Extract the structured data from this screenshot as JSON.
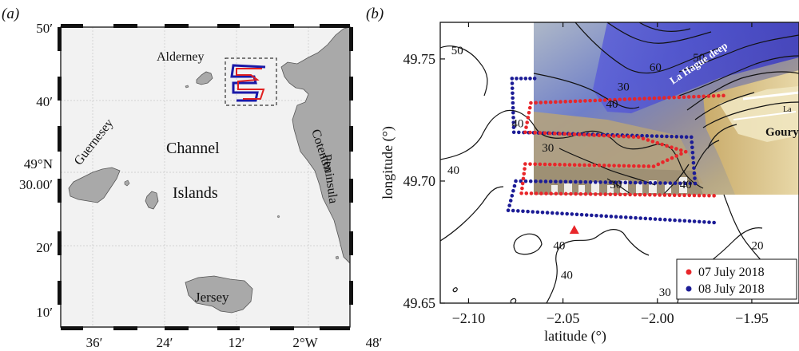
{
  "panel_a": {
    "label": "(a)",
    "yticks": [
      "50′",
      "40′",
      "30.00′",
      "20′",
      "10′"
    ],
    "ytick_extra": "49°N",
    "xticks": [
      "36′",
      "24′",
      "12′",
      "2°W",
      "48′"
    ],
    "place_names": {
      "alderney": "Alderney",
      "guernesey": "Guernesey",
      "channel": "Channel",
      "islands": "Islands",
      "jersey": "Jersey",
      "cotentin": "Cotentin",
      "peninsula": "Peninsula"
    },
    "colors": {
      "land": "#a9a9a9",
      "sea": "#f2f2f2",
      "track_red": "#e02020",
      "track_blue": "#1a1aa8"
    }
  },
  "panel_b": {
    "label": "(b)",
    "inset_labels": {
      "hague": "La Hague deep",
      "goury": "Goury",
      "corner": "La"
    },
    "colors": {
      "red": "#e8262a",
      "blue": "#1c1c96"
    }
  },
  "chart_data": [
    {
      "type": "map",
      "panel": "(a)",
      "ylabels": [
        "50′",
        "40′",
        "49°N 30.00′",
        "20′",
        "10′"
      ],
      "xlabels": [
        "36′",
        "24′",
        "12′",
        "2°W",
        "48′"
      ]
    },
    {
      "type": "scatter",
      "panel": "(b)",
      "xlabel": "latitude (°)",
      "ylabel": "longitude (°)",
      "xlim": [
        -2.115,
        -1.925
      ],
      "ylim": [
        49.65,
        49.765
      ],
      "xticks": [
        -2.1,
        -2.05,
        -2.0,
        -1.95
      ],
      "xtick_labels": [
        "−2.10",
        "−2.05",
        "−2.00",
        "−1.95"
      ],
      "yticks": [
        49.65,
        49.7,
        49.75
      ],
      "ytick_labels": [
        "49.65",
        "49.70",
        "49.75"
      ],
      "contour_labels": [
        {
          "text": "50",
          "x": -2.106,
          "y": 49.752
        },
        {
          "text": "40",
          "x": -2.108,
          "y": 49.703
        },
        {
          "text": "60",
          "x": -2.001,
          "y": 49.745
        },
        {
          "text": "50",
          "x": -1.978,
          "y": 49.749
        },
        {
          "text": "30",
          "x": -2.018,
          "y": 49.737
        },
        {
          "text": "40",
          "x": -2.024,
          "y": 49.73
        },
        {
          "text": "40",
          "x": -2.074,
          "y": 49.722
        },
        {
          "text": "30",
          "x": -2.058,
          "y": 49.712
        },
        {
          "text": "30",
          "x": -2.022,
          "y": 49.697
        },
        {
          "text": "40",
          "x": -1.985,
          "y": 49.697
        },
        {
          "text": "40",
          "x": -2.052,
          "y": 49.672
        },
        {
          "text": "40",
          "x": -2.048,
          "y": 49.66
        },
        {
          "text": "30",
          "x": -1.996,
          "y": 49.653
        },
        {
          "text": "20",
          "x": -1.947,
          "y": 49.672
        }
      ],
      "marker": {
        "x": -2.044,
        "y": 49.68,
        "color": "#e8262a"
      },
      "series": [
        {
          "name": "07 July 2018",
          "color": "#e8262a",
          "path": [
            [
              -1.965,
              49.735
            ],
            [
              -2.067,
              49.732
            ],
            [
              -2.07,
              49.72
            ],
            [
              -2.01,
              49.718
            ],
            [
              -1.985,
              49.712
            ],
            [
              -2.002,
              49.706
            ],
            [
              -2.07,
              49.707
            ],
            [
              -2.072,
              49.695
            ],
            [
              -1.97,
              49.694
            ]
          ]
        },
        {
          "name": "08 July 2018",
          "color": "#1c1c96",
          "path": [
            [
              -2.065,
              49.742
            ],
            [
              -2.077,
              49.742
            ],
            [
              -2.076,
              49.72
            ],
            [
              -1.982,
              49.718
            ],
            [
              -1.98,
              49.699
            ],
            [
              -2.075,
              49.7
            ],
            [
              -2.079,
              49.688
            ],
            [
              -1.97,
              49.683
            ]
          ]
        }
      ],
      "legend": {
        "position": "bottom-right",
        "entries": [
          "07 July 2018",
          "08 July 2018"
        ]
      }
    }
  ]
}
